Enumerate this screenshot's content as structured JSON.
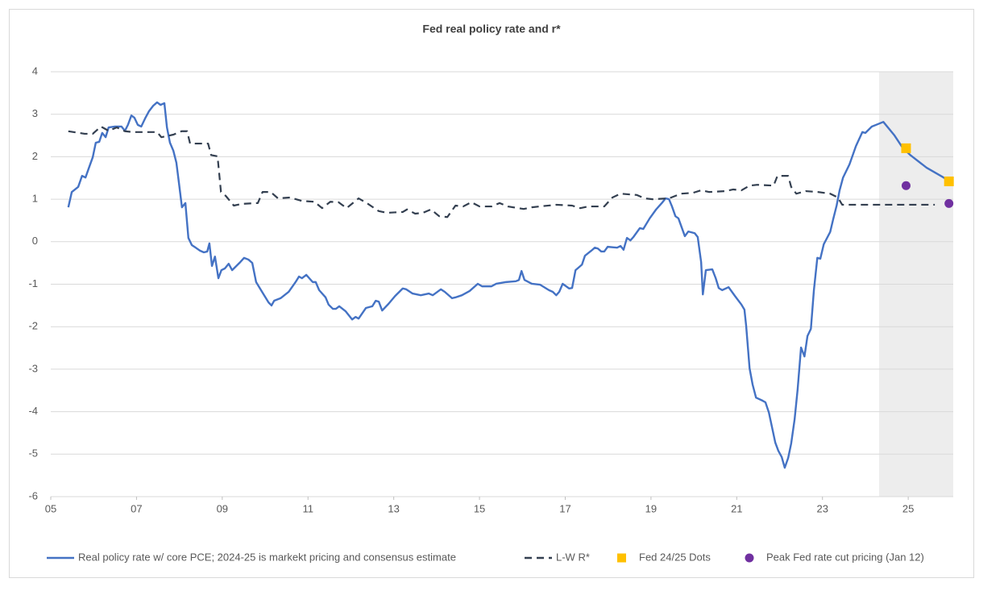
{
  "chart_data": {
    "type": "line",
    "title": "Fed real policy rate and r*",
    "xlim": [
      2005,
      2026.05
    ],
    "xticks": [
      {
        "value": 2005,
        "label": "05"
      },
      {
        "value": 2007,
        "label": "07"
      },
      {
        "value": 2009,
        "label": "09"
      },
      {
        "value": 2011,
        "label": "11"
      },
      {
        "value": 2013,
        "label": "13"
      },
      {
        "value": 2015,
        "label": "15"
      },
      {
        "value": 2017,
        "label": "17"
      },
      {
        "value": 2019,
        "label": "19"
      },
      {
        "value": 2021,
        "label": "21"
      },
      {
        "value": 2023,
        "label": "23"
      },
      {
        "value": 2025,
        "label": "25"
      }
    ],
    "ylim": [
      -6,
      4
    ],
    "yticks": [
      -6,
      -5,
      -4,
      -3,
      -2,
      -1,
      0,
      1,
      2,
      3,
      4
    ],
    "grid": true,
    "legend": "bottom",
    "shade_xrange": [
      2024.32,
      2026.05
    ],
    "series": [
      {
        "name": "Real policy rate w/ core PCE; 2024-25 is markekt pricing and consensus estimate",
        "color": "#4472c4",
        "type": "line",
        "x": [
          2005.41,
          2005.49,
          2005.64,
          2005.73,
          2005.81,
          2005.88,
          2005.98,
          2006.05,
          2006.13,
          2006.2,
          2006.28,
          2006.35,
          2006.5,
          2006.65,
          2006.73,
          2006.8,
          2006.88,
          2006.95,
          2007.03,
          2007.11,
          2007.2,
          2007.29,
          2007.39,
          2007.48,
          2007.56,
          2007.65,
          2007.71,
          2007.78,
          2007.86,
          2007.93,
          2007.99,
          2008.06,
          2008.14,
          2008.21,
          2008.29,
          2008.38,
          2008.48,
          2008.57,
          2008.65,
          2008.7,
          2008.76,
          2008.83,
          2008.91,
          2008.98,
          2009.06,
          2009.15,
          2009.23,
          2009.42,
          2009.51,
          2009.61,
          2009.7,
          2009.79,
          2009.94,
          2010.08,
          2010.15,
          2010.21,
          2010.36,
          2010.55,
          2010.71,
          2010.79,
          2010.86,
          2010.96,
          2011.11,
          2011.18,
          2011.26,
          2011.41,
          2011.48,
          2011.58,
          2011.65,
          2011.73,
          2011.88,
          2012.03,
          2012.11,
          2012.18,
          2012.35,
          2012.5,
          2012.58,
          2012.65,
          2012.73,
          2012.88,
          2013.03,
          2013.21,
          2013.29,
          2013.44,
          2013.63,
          2013.82,
          2013.91,
          2014.1,
          2014.19,
          2014.36,
          2014.44,
          2014.59,
          2014.77,
          2014.96,
          2015.06,
          2015.28,
          2015.39,
          2015.62,
          2015.85,
          2015.92,
          2015.98,
          2016.05,
          2016.22,
          2016.41,
          2016.62,
          2016.71,
          2016.79,
          2016.86,
          2016.94,
          2017.09,
          2017.16,
          2017.24,
          2017.39,
          2017.46,
          2017.61,
          2017.69,
          2017.76,
          2017.84,
          2017.91,
          2017.99,
          2018.21,
          2018.29,
          2018.36,
          2018.44,
          2018.52,
          2018.59,
          2018.74,
          2018.82,
          2018.97,
          2019.12,
          2019.27,
          2019.34,
          2019.42,
          2019.49,
          2019.57,
          2019.64,
          2019.79,
          2019.87,
          2020.02,
          2020.09,
          2020.17,
          2020.21,
          2020.28,
          2020.43,
          2020.51,
          2020.58,
          2020.66,
          2020.81,
          2020.96,
          2021.11,
          2021.18,
          2021.22,
          2021.3,
          2021.37,
          2021.45,
          2021.6,
          2021.67,
          2021.75,
          2021.9,
          2021.97,
          2022.05,
          2022.12,
          2022.2,
          2022.27,
          2022.35,
          2022.42,
          2022.5,
          2022.58,
          2022.65,
          2022.73,
          2022.8,
          2022.88,
          2022.95,
          2023.03,
          2023.18,
          2023.25,
          2023.33,
          2023.4,
          2023.48,
          2023.63,
          2023.78,
          2023.93,
          2024.0,
          2024.15,
          2024.3,
          2024.42,
          2024.68,
          2024.87,
          2025.06,
          2025.43,
          2025.81,
          2026.0
        ],
        "values": [
          0.81,
          1.17,
          1.29,
          1.55,
          1.51,
          1.71,
          1.99,
          2.33,
          2.35,
          2.56,
          2.46,
          2.69,
          2.71,
          2.71,
          2.61,
          2.75,
          2.97,
          2.92,
          2.75,
          2.71,
          2.9,
          3.07,
          3.2,
          3.28,
          3.22,
          3.26,
          2.69,
          2.33,
          2.14,
          1.86,
          1.38,
          0.81,
          0.91,
          0.09,
          -0.08,
          -0.14,
          -0.21,
          -0.25,
          -0.23,
          -0.04,
          -0.57,
          -0.35,
          -0.86,
          -0.67,
          -0.63,
          -0.52,
          -0.67,
          -0.48,
          -0.38,
          -0.42,
          -0.5,
          -0.95,
          -1.2,
          -1.43,
          -1.5,
          -1.39,
          -1.33,
          -1.18,
          -0.95,
          -0.82,
          -0.86,
          -0.78,
          -0.95,
          -0.95,
          -1.14,
          -1.31,
          -1.48,
          -1.58,
          -1.58,
          -1.52,
          -1.64,
          -1.83,
          -1.77,
          -1.81,
          -1.56,
          -1.52,
          -1.39,
          -1.41,
          -1.62,
          -1.46,
          -1.28,
          -1.1,
          -1.12,
          -1.22,
          -1.26,
          -1.22,
          -1.26,
          -1.12,
          -1.18,
          -1.33,
          -1.31,
          -1.26,
          -1.16,
          -0.99,
          -1.05,
          -1.05,
          -0.99,
          -0.95,
          -0.93,
          -0.9,
          -0.69,
          -0.9,
          -0.99,
          -1.01,
          -1.14,
          -1.18,
          -1.26,
          -1.18,
          -0.99,
          -1.1,
          -1.09,
          -0.67,
          -0.54,
          -0.33,
          -0.21,
          -0.14,
          -0.16,
          -0.23,
          -0.23,
          -0.12,
          -0.14,
          -0.1,
          -0.19,
          0.09,
          0.03,
          0.11,
          0.32,
          0.3,
          0.55,
          0.76,
          0.93,
          1.02,
          1.0,
          0.83,
          0.6,
          0.55,
          0.13,
          0.24,
          0.2,
          0.11,
          -0.48,
          -1.24,
          -0.67,
          -0.65,
          -0.86,
          -1.09,
          -1.14,
          -1.07,
          -1.28,
          -1.48,
          -1.6,
          -1.98,
          -2.98,
          -3.36,
          -3.67,
          -3.74,
          -3.78,
          -4.02,
          -4.73,
          -4.92,
          -5.07,
          -5.32,
          -5.09,
          -4.75,
          -4.18,
          -3.48,
          -2.49,
          -2.7,
          -2.22,
          -2.05,
          -1.14,
          -0.38,
          -0.4,
          -0.06,
          0.23,
          0.53,
          0.85,
          1.21,
          1.51,
          1.82,
          2.25,
          2.58,
          2.56,
          2.71,
          2.77,
          2.82,
          2.5,
          2.21,
          2.03,
          1.74,
          1.52,
          1.4
        ]
      },
      {
        "name": "L-W R*",
        "color": "#333f50",
        "type": "line",
        "dash": true,
        "x": [
          2005.41,
          2005.79,
          2005.98,
          2006.17,
          2006.35,
          2006.54,
          2006.73,
          2006.92,
          2007.48,
          2007.58,
          2007.86,
          2008.05,
          2008.18,
          2008.25,
          2008.67,
          2008.74,
          2008.89,
          2008.97,
          2009.08,
          2009.27,
          2009.45,
          2009.83,
          2009.94,
          2010.13,
          2010.3,
          2010.58,
          2010.86,
          2011.15,
          2011.33,
          2011.52,
          2011.71,
          2011.9,
          2012.18,
          2012.37,
          2012.65,
          2012.84,
          2013.21,
          2013.31,
          2013.5,
          2013.68,
          2013.87,
          2014.06,
          2014.25,
          2014.44,
          2014.62,
          2014.81,
          2015.0,
          2015.28,
          2015.47,
          2015.66,
          2016.03,
          2016.22,
          2016.79,
          2017.16,
          2017.35,
          2017.54,
          2017.91,
          2018.1,
          2018.29,
          2018.67,
          2018.85,
          2019.04,
          2019.42,
          2019.7,
          2019.98,
          2020.17,
          2020.36,
          2020.73,
          2020.92,
          2021.11,
          2021.3,
          2021.48,
          2021.86,
          2021.95,
          2022.2,
          2022.27,
          2022.39,
          2022.61,
          2022.89,
          2023.18,
          2023.36,
          2023.46,
          2025.62
        ],
        "values": [
          2.6,
          2.54,
          2.54,
          2.71,
          2.61,
          2.69,
          2.6,
          2.58,
          2.58,
          2.46,
          2.52,
          2.6,
          2.6,
          2.31,
          2.31,
          2.04,
          2.01,
          1.17,
          1.08,
          0.85,
          0.89,
          0.91,
          1.17,
          1.17,
          1.02,
          1.04,
          0.96,
          0.94,
          0.79,
          0.94,
          0.93,
          0.79,
          1.02,
          0.91,
          0.72,
          0.68,
          0.7,
          0.76,
          0.66,
          0.68,
          0.76,
          0.6,
          0.58,
          0.85,
          0.83,
          0.93,
          0.83,
          0.83,
          0.91,
          0.83,
          0.77,
          0.81,
          0.87,
          0.85,
          0.79,
          0.83,
          0.83,
          1.04,
          1.13,
          1.1,
          1.02,
          1.0,
          1.02,
          1.13,
          1.15,
          1.21,
          1.17,
          1.19,
          1.23,
          1.21,
          1.32,
          1.34,
          1.32,
          1.55,
          1.55,
          1.29,
          1.13,
          1.19,
          1.17,
          1.13,
          1.04,
          0.87,
          0.87
        ]
      },
      {
        "name": "Fed 24/25 Dots",
        "color": "#ffc000",
        "type": "scatter",
        "marker": "square",
        "x": [
          2024.95,
          2025.95
        ],
        "values": [
          2.2,
          1.42
        ]
      },
      {
        "name": "Peak Fed rate cut pricing (Jan 12)",
        "color": "#7030a0",
        "type": "scatter",
        "marker": "circle",
        "x": [
          2024.95,
          2025.95
        ],
        "values": [
          1.32,
          0.9
        ]
      }
    ]
  }
}
